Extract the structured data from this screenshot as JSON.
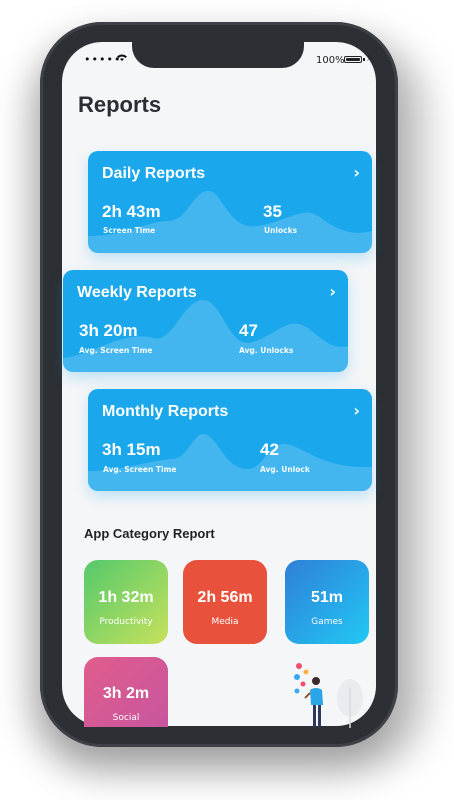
{
  "status_bar": {
    "signal_dots": "•••••",
    "battery_percent": "100%"
  },
  "page": {
    "title": "Reports"
  },
  "reports": [
    {
      "title": "Daily Reports",
      "stats": [
        {
          "value": "2h 43m",
          "label": "Screen Time"
        },
        {
          "value": "35",
          "label": "Unlocks"
        }
      ]
    },
    {
      "title": "Weekly Reports",
      "stats": [
        {
          "value": "3h 20m",
          "label": "Avg. Screen Time"
        },
        {
          "value": "47",
          "label": "Avg. Unlocks"
        }
      ]
    },
    {
      "title": "Monthly Reports",
      "stats": [
        {
          "value": "3h 15m",
          "label": "Avg. Screen Time"
        },
        {
          "value": "42",
          "label": "Avg. Unlock"
        }
      ]
    }
  ],
  "app_category": {
    "title": "App Category Report",
    "tiles": [
      {
        "value": "1h 32m",
        "label": "Productivity"
      },
      {
        "value": "2h 56m",
        "label": "Media"
      },
      {
        "value": "51m",
        "label": "Games"
      },
      {
        "value": "3h 2m",
        "label": "Social"
      }
    ]
  },
  "icons": {
    "chevron": "chevron-right-icon",
    "wifi": "wifi-icon",
    "battery": "battery-icon"
  },
  "colors": {
    "report_card": "#1aa7ec",
    "productivity": [
      "#54c96b",
      "#c6e15c"
    ],
    "media": "#e8513c",
    "games": [
      "#2f7fd8",
      "#21c8f4"
    ],
    "social": [
      "#e15c8c",
      "#c7569e"
    ]
  }
}
